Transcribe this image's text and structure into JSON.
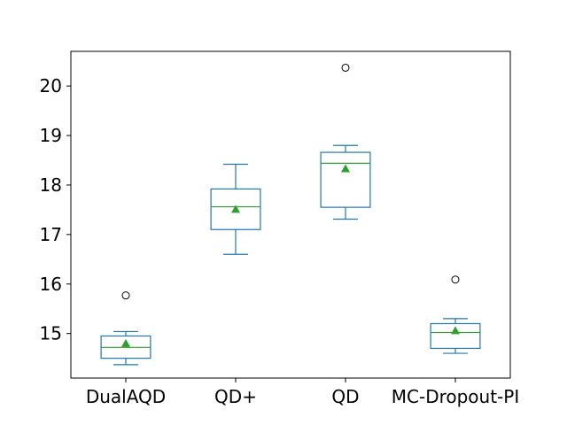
{
  "chart_data": {
    "type": "box",
    "title": "",
    "xlabel": "",
    "ylabel": "",
    "ylim": [
      14.1,
      20.7
    ],
    "yticks": [
      15,
      16,
      17,
      18,
      19,
      20
    ],
    "categories": [
      "DualAQD",
      "QD+",
      "QD",
      "MC-Dropout-PI"
    ],
    "boxes": [
      {
        "name": "DualAQD",
        "whisker_low": 14.37,
        "q1": 14.5,
        "median": 14.72,
        "q3": 14.95,
        "whisker_high": 15.04,
        "mean": 14.8,
        "outliers": [
          15.77
        ]
      },
      {
        "name": "QD+",
        "whisker_low": 16.6,
        "q1": 17.1,
        "median": 17.56,
        "q3": 17.92,
        "whisker_high": 18.42,
        "mean": 17.51,
        "outliers": []
      },
      {
        "name": "QD",
        "whisker_low": 17.31,
        "q1": 17.55,
        "median": 18.44,
        "q3": 18.66,
        "whisker_high": 18.8,
        "mean": 18.33,
        "outliers": [
          20.37
        ]
      },
      {
        "name": "MC-Dropout-PI",
        "whisker_low": 14.6,
        "q1": 14.7,
        "median": 15.02,
        "q3": 15.2,
        "whisker_high": 15.3,
        "mean": 15.06,
        "outliers": [
          16.09
        ]
      }
    ],
    "colors": {
      "box": "#1f77b4",
      "median": "#2ca02c",
      "mean": "#2ca02c",
      "outlier": "#000000"
    },
    "grid": false,
    "legend": "none"
  }
}
